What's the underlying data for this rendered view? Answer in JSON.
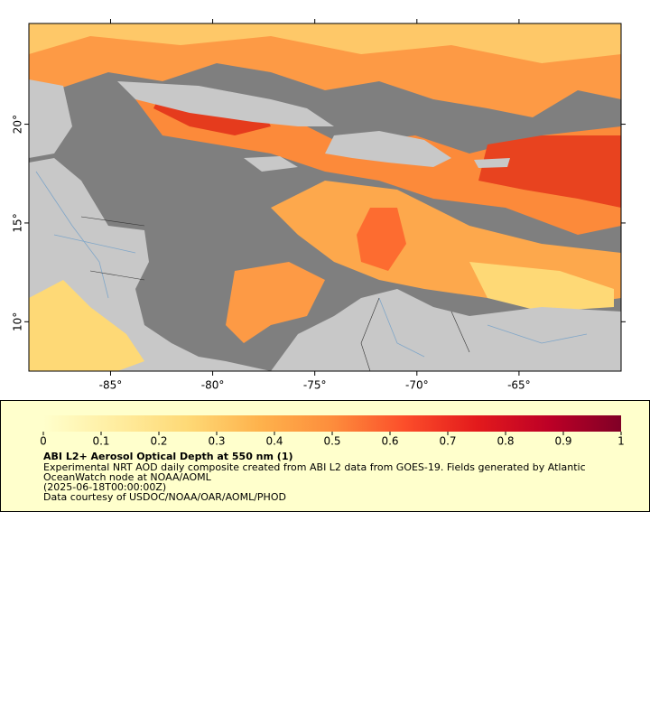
{
  "map": {
    "xlim": [
      -89,
      -60
    ],
    "ylim": [
      7.5,
      25.1
    ],
    "xticks": [
      {
        "value": -85,
        "label": "-85°"
      },
      {
        "value": -80,
        "label": "-80°"
      },
      {
        "value": -75,
        "label": "-75°"
      },
      {
        "value": -70,
        "label": "-70°"
      },
      {
        "value": -65,
        "label": "-65°"
      }
    ],
    "yticks": [
      {
        "value": 20,
        "label": "20°"
      },
      {
        "value": 15,
        "label": "15°"
      },
      {
        "value": 10,
        "label": "10°"
      }
    ]
  },
  "colorbar": {
    "lim": [
      0,
      1
    ],
    "ticks": [
      0,
      0.1,
      0.2,
      0.3,
      0.4,
      0.5,
      0.6,
      0.7,
      0.8,
      0.9,
      1
    ],
    "colors": [
      "#ffffcc",
      "#ffeda0",
      "#fed976",
      "#feb24c",
      "#fd8d3c",
      "#fc4e2a",
      "#e31a1c",
      "#bd0026",
      "#800026"
    ]
  },
  "legend": {
    "title": "ABI L2+ Aerosol Optical Depth at 550 nm (1)",
    "lines": [
      "Experimental NRT AOD daily composite created from ABI L2 data from GOES-19. Fields generated by Atlantic",
      "OceanWatch node at NOAA/AOML",
      "(2025-06-18T00:00:00Z)",
      "Data courtesy of USDOC/NOAA/OAR/AOML/PHOD"
    ]
  }
}
